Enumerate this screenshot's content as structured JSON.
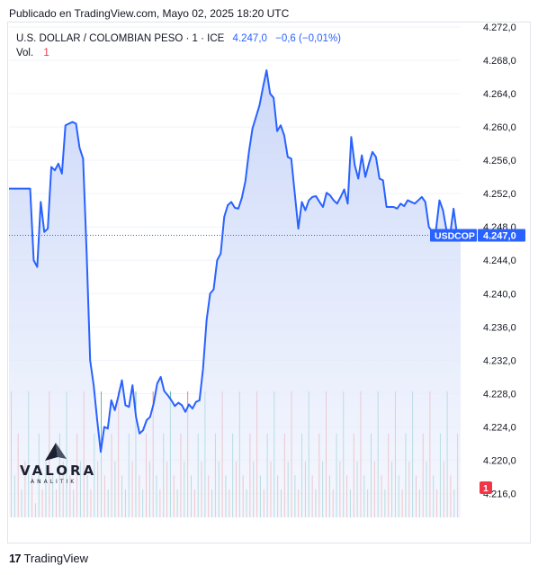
{
  "published": "Publicado en TradingView.com, Mayo 02, 2025 18:20 UTC",
  "legend": {
    "symbol": "U.S. DOLLAR / COLOMBIAN PESO · 1 · ICE",
    "price": "4.247,0",
    "change": "−0,6 (−0,01%)",
    "vol_label": "Vol.",
    "vol_value": "1"
  },
  "watermark": {
    "name": "VALORA",
    "sub": "ANALITIK"
  },
  "footer": {
    "brand": "TradingView"
  },
  "colors": {
    "line": "#2962ff",
    "fill": "#dbe4fb",
    "vol_up": "#26a69a",
    "vol_down": "#ef5350",
    "price_label": "#2962ff",
    "vol_badge": "#f23645"
  },
  "chart_data": {
    "type": "area",
    "symbol_label": "USDCOP",
    "last_price_label": "4.247,0",
    "vol_badge": "1",
    "ylim": [
      4214,
      4272
    ],
    "y_ticks": [
      "4.272,0",
      "4.268,0",
      "4.264,0",
      "4.260,0",
      "4.256,0",
      "4.252,0",
      "4.248,0",
      "4.244,0",
      "4.240,0",
      "4.236,0",
      "4.232,0",
      "4.228,0",
      "4.224,0",
      "4.220,0",
      "4.216,0"
    ],
    "y_tick_values": [
      4272,
      4268,
      4264,
      4260,
      4256,
      4252,
      4248,
      4244,
      4240,
      4236,
      4232,
      4228,
      4224,
      4220,
      4216
    ],
    "last_price": 4247.0,
    "series": [
      {
        "values": [
          4252.6,
          4252.6,
          4252.6,
          4252.6,
          4252.6,
          4252.6,
          4252.6,
          4244.0,
          4243.2,
          4251.0,
          4247.4,
          4247.8,
          4255.2,
          4254.8,
          4255.6,
          4254.4,
          4260.2,
          4260.4,
          4260.6,
          4260.4,
          4257.5,
          4256.2,
          4245.0,
          4232.0,
          4229.0,
          4224.8,
          4221.0,
          4224.0,
          4223.8,
          4227.2,
          4226.0,
          4227.7,
          4229.6,
          4226.6,
          4226.4,
          4229.0,
          4225.2,
          4223.2,
          4223.6,
          4224.8,
          4225.2,
          4226.8,
          4229.2,
          4230.0,
          4228.3,
          4227.8,
          4227.2,
          4226.5,
          4226.9,
          4226.6,
          4225.8,
          4226.7,
          4226.2,
          4227.0,
          4227.2,
          4231.0,
          4236.8,
          4240.0,
          4240.5,
          4244.0,
          4244.8,
          4249.2,
          4250.6,
          4251.0,
          4250.3,
          4250.2,
          4251.5,
          4253.5,
          4257.0,
          4259.8,
          4261.2,
          4262.6,
          4264.8,
          4266.8,
          4264.0,
          4263.5,
          4259.5,
          4260.2,
          4259.0,
          4256.4,
          4256.2,
          4252.0,
          4247.8,
          4251.0,
          4250.0,
          4251.2,
          4251.6,
          4251.7,
          4251.0,
          4250.4,
          4252.1,
          4251.8,
          4251.2,
          4250.8,
          4251.6,
          4252.5,
          4250.8,
          4258.8,
          4255.4,
          4253.8,
          4256.6,
          4254.0,
          4255.6,
          4257.0,
          4256.4,
          4253.8,
          4253.6,
          4250.4,
          4250.4,
          4250.4,
          4250.2,
          4250.8,
          4250.5,
          4251.2,
          4251.0,
          4250.8,
          4251.2,
          4251.6,
          4251.0,
          4248.0,
          4247.4,
          4247.6,
          4251.2,
          4250.0,
          4247.6,
          4247.0,
          4250.2,
          4247.0,
          4247.0
        ]
      }
    ],
    "volume": [
      {
        "v": 9,
        "up": false
      },
      {
        "v": 3,
        "up": true
      },
      {
        "v": 6,
        "up": false
      },
      {
        "v": 2,
        "up": true
      },
      {
        "v": 4,
        "up": false
      },
      {
        "v": 9,
        "up": true
      },
      {
        "v": 3,
        "up": false
      },
      {
        "v": 1,
        "up": false
      },
      {
        "v": 6,
        "up": true
      },
      {
        "v": 2,
        "up": false
      },
      {
        "v": 4,
        "up": true
      },
      {
        "v": 9,
        "up": false
      },
      {
        "v": 3,
        "up": true
      },
      {
        "v": 2,
        "up": false
      },
      {
        "v": 6,
        "up": true
      },
      {
        "v": 4,
        "up": false
      },
      {
        "v": 9,
        "up": true
      },
      {
        "v": 3,
        "up": false
      },
      {
        "v": 2,
        "up": true
      },
      {
        "v": 6,
        "up": false
      },
      {
        "v": 4,
        "up": true
      },
      {
        "v": 9,
        "up": false
      },
      {
        "v": 3,
        "up": true
      },
      {
        "v": 2,
        "up": false
      },
      {
        "v": 6,
        "up": true
      },
      {
        "v": 4,
        "up": false
      },
      {
        "v": 9,
        "up": true
      },
      {
        "v": 3,
        "up": false
      },
      {
        "v": 2,
        "up": true
      },
      {
        "v": 6,
        "up": false
      },
      {
        "v": 4,
        "up": true
      },
      {
        "v": 9,
        "up": false
      },
      {
        "v": 3,
        "up": true
      },
      {
        "v": 2,
        "up": false
      },
      {
        "v": 6,
        "up": true
      },
      {
        "v": 4,
        "up": false
      },
      {
        "v": 9,
        "up": true
      },
      {
        "v": 3,
        "up": false
      },
      {
        "v": 2,
        "up": true
      },
      {
        "v": 6,
        "up": false
      },
      {
        "v": 4,
        "up": true
      },
      {
        "v": 9,
        "up": false
      },
      {
        "v": 3,
        "up": true
      },
      {
        "v": 2,
        "up": false
      },
      {
        "v": 6,
        "up": true
      },
      {
        "v": 4,
        "up": false
      },
      {
        "v": 9,
        "up": true
      },
      {
        "v": 3,
        "up": false
      },
      {
        "v": 2,
        "up": true
      },
      {
        "v": 6,
        "up": false
      },
      {
        "v": 4,
        "up": true
      },
      {
        "v": 9,
        "up": false
      },
      {
        "v": 3,
        "up": true
      },
      {
        "v": 2,
        "up": false
      },
      {
        "v": 6,
        "up": true
      },
      {
        "v": 4,
        "up": false
      },
      {
        "v": 9,
        "up": true
      },
      {
        "v": 3,
        "up": false
      },
      {
        "v": 2,
        "up": true
      },
      {
        "v": 6,
        "up": false
      },
      {
        "v": 4,
        "up": true
      },
      {
        "v": 9,
        "up": false
      },
      {
        "v": 3,
        "up": true
      },
      {
        "v": 2,
        "up": false
      },
      {
        "v": 6,
        "up": true
      },
      {
        "v": 4,
        "up": false
      },
      {
        "v": 9,
        "up": true
      },
      {
        "v": 3,
        "up": false
      },
      {
        "v": 2,
        "up": true
      },
      {
        "v": 6,
        "up": false
      },
      {
        "v": 4,
        "up": true
      },
      {
        "v": 9,
        "up": false
      },
      {
        "v": 3,
        "up": true
      },
      {
        "v": 2,
        "up": false
      },
      {
        "v": 6,
        "up": true
      },
      {
        "v": 4,
        "up": false
      },
      {
        "v": 9,
        "up": true
      },
      {
        "v": 3,
        "up": false
      },
      {
        "v": 2,
        "up": true
      },
      {
        "v": 6,
        "up": false
      },
      {
        "v": 4,
        "up": true
      },
      {
        "v": 9,
        "up": false
      },
      {
        "v": 3,
        "up": true
      },
      {
        "v": 2,
        "up": false
      },
      {
        "v": 6,
        "up": true
      },
      {
        "v": 4,
        "up": false
      },
      {
        "v": 9,
        "up": true
      },
      {
        "v": 3,
        "up": false
      },
      {
        "v": 2,
        "up": true
      },
      {
        "v": 6,
        "up": false
      },
      {
        "v": 4,
        "up": true
      },
      {
        "v": 9,
        "up": false
      },
      {
        "v": 3,
        "up": true
      },
      {
        "v": 2,
        "up": false
      },
      {
        "v": 6,
        "up": true
      },
      {
        "v": 4,
        "up": false
      },
      {
        "v": 9,
        "up": true
      },
      {
        "v": 3,
        "up": false
      },
      {
        "v": 2,
        "up": true
      },
      {
        "v": 6,
        "up": false
      },
      {
        "v": 4,
        "up": true
      },
      {
        "v": 9,
        "up": false
      },
      {
        "v": 3,
        "up": true
      },
      {
        "v": 2,
        "up": false
      },
      {
        "v": 6,
        "up": true
      },
      {
        "v": 4,
        "up": false
      },
      {
        "v": 9,
        "up": true
      },
      {
        "v": 3,
        "up": false
      },
      {
        "v": 2,
        "up": true
      },
      {
        "v": 6,
        "up": false
      },
      {
        "v": 4,
        "up": true
      },
      {
        "v": 9,
        "up": false
      },
      {
        "v": 3,
        "up": true
      },
      {
        "v": 2,
        "up": false
      },
      {
        "v": 6,
        "up": true
      },
      {
        "v": 4,
        "up": false
      },
      {
        "v": 9,
        "up": true
      },
      {
        "v": 3,
        "up": false
      },
      {
        "v": 2,
        "up": true
      },
      {
        "v": 6,
        "up": false
      },
      {
        "v": 4,
        "up": true
      },
      {
        "v": 9,
        "up": false
      },
      {
        "v": 3,
        "up": true
      },
      {
        "v": 2,
        "up": false
      },
      {
        "v": 6,
        "up": true
      },
      {
        "v": 4,
        "up": false
      },
      {
        "v": 9,
        "up": true
      },
      {
        "v": 3,
        "up": false
      },
      {
        "v": 2,
        "up": true
      },
      {
        "v": 6,
        "up": false
      }
    ],
    "grid": true
  }
}
